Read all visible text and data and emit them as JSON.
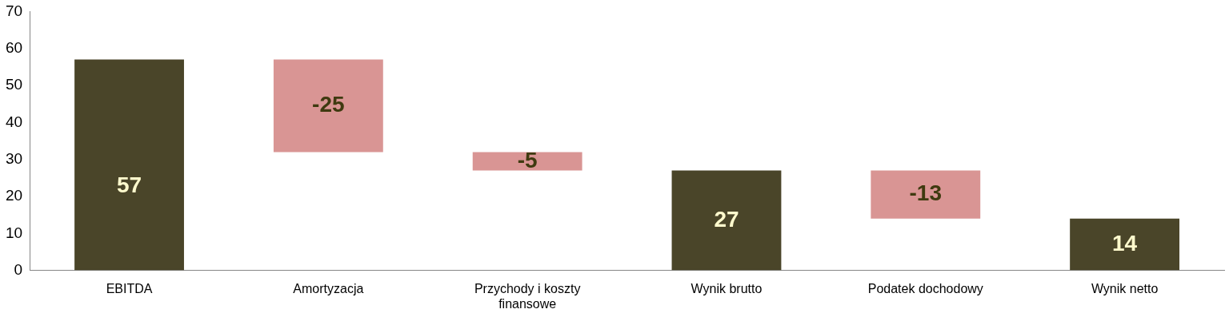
{
  "chart_data": {
    "type": "bar",
    "categories": [
      "EBITDA",
      "Amortyzacja",
      "Przychody i koszty finansowe",
      "Wynik brutto",
      "Podatek dochodowy",
      "Wynik netto"
    ],
    "values": [
      57,
      -25,
      -5,
      27,
      -13,
      14
    ],
    "base": [
      0,
      57,
      32,
      0,
      27,
      0
    ],
    "colors": [
      "#4a4529",
      "#d99594",
      "#d99594",
      "#4a4529",
      "#d99594",
      "#4a4529"
    ],
    "ylim": [
      0,
      70
    ],
    "yticks": [
      0,
      10,
      20,
      30,
      40,
      50,
      60,
      70
    ],
    "grid": false,
    "legend": false,
    "data_labels": true
  }
}
